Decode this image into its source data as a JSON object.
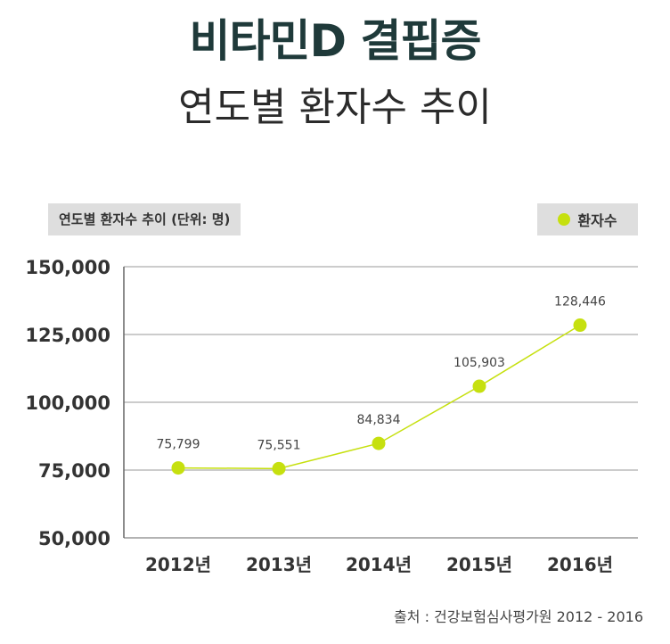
{
  "header": {
    "title": "비타민D 결핍증",
    "subtitle": "연도별 환자수 추이"
  },
  "chart_label": "연도별 환자수 추이 (단위: 명)",
  "legend": {
    "label": "환자수",
    "color": "#c6e00f"
  },
  "source": "출처 : 건강보험심사평가원 2012 - 2016",
  "chart_data": {
    "type": "line",
    "title": "",
    "xlabel": "",
    "ylabel": "",
    "categories": [
      "2012년",
      "2013년",
      "2014년",
      "2015년",
      "2016년"
    ],
    "series": [
      {
        "name": "환자수",
        "values": [
          75799,
          75551,
          84834,
          105903,
          128446
        ],
        "labels": [
          "75,799",
          "75,551",
          "84,834",
          "105,903",
          "128,446"
        ]
      }
    ],
    "ylim": [
      50000,
      150000
    ],
    "yticks": [
      50000,
      75000,
      100000,
      125000,
      150000
    ],
    "ytick_labels": [
      "50,000",
      "75,000",
      "100,000",
      "125,000",
      "150,000"
    ],
    "grid": true,
    "colors": {
      "line": "#c6e00f",
      "grid": "#9a9a9a",
      "axis": "#666666"
    }
  }
}
